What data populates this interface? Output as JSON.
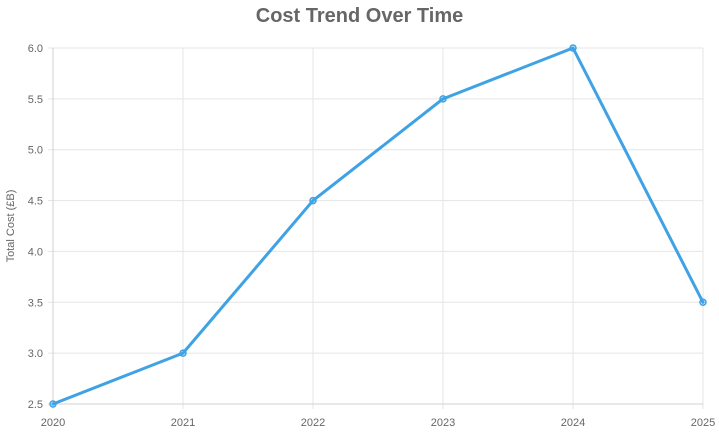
{
  "chart_data": {
    "type": "line",
    "title": "Cost Trend Over Time",
    "xlabel": "",
    "ylabel": "Total Cost (£B)",
    "x": [
      "2020",
      "2021",
      "2022",
      "2023",
      "2024",
      "2025"
    ],
    "series": [
      {
        "values": [
          2.5,
          3.0,
          4.5,
          5.5,
          6.0,
          3.5
        ],
        "color": "#3ea2e5"
      }
    ],
    "ylim": [
      2.5,
      6.0
    ],
    "yticks": [
      "2.5",
      "3.0",
      "3.5",
      "4.0",
      "4.5",
      "5.0",
      "5.5",
      "6.0"
    ],
    "grid": true,
    "legend": "none"
  }
}
